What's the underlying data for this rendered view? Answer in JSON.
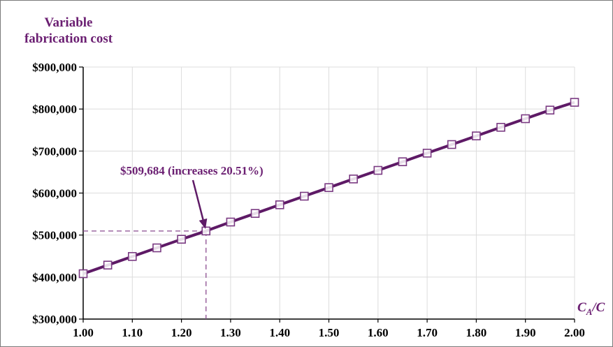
{
  "chart_data": {
    "type": "line",
    "title_lines": [
      "Variable",
      "fabrication cost"
    ],
    "xlabel_main": "C",
    "xlabel_sub": "A",
    "xlabel_tail": "/C",
    "x": [
      1.0,
      1.05,
      1.1,
      1.15,
      1.2,
      1.25,
      1.3,
      1.35,
      1.4,
      1.45,
      1.5,
      1.55,
      1.6,
      1.65,
      1.7,
      1.75,
      1.8,
      1.85,
      1.9,
      1.95,
      2.0
    ],
    "series": [
      {
        "values": [
          408000,
          428500,
          449000,
          469500,
          490000,
          509684,
          531000,
          551500,
          572000,
          592500,
          613000,
          633500,
          654000,
          674500,
          695000,
          715500,
          736000,
          756500,
          777000,
          797500,
          816000
        ]
      }
    ],
    "xlim": [
      1.0,
      2.0
    ],
    "ylim": [
      300000,
      900000
    ],
    "x_ticks": [
      1.0,
      1.1,
      1.2,
      1.3,
      1.4,
      1.5,
      1.6,
      1.7,
      1.8,
      1.9,
      2.0
    ],
    "x_tick_labels": [
      "1.00",
      "1.10",
      "1.20",
      "1.30",
      "1.40",
      "1.50",
      "1.60",
      "1.70",
      "1.80",
      "1.90",
      "2.00"
    ],
    "y_ticks": [
      300000,
      400000,
      500000,
      600000,
      700000,
      800000,
      900000
    ],
    "y_tick_labels": [
      "$300,000",
      "$400,000",
      "$500,000",
      "$600,000",
      "$700,000",
      "$800,000",
      "$900,000"
    ],
    "grid": true,
    "annotation": {
      "text": "$509,684 (increases 20.51%)",
      "x": 1.25,
      "y": 509684
    },
    "colors": {
      "line": "#5e1a66",
      "marker": "#7a3a82",
      "text": "#6b1f72",
      "grid": "#dcdcdc",
      "guide": "#8a4b8f"
    }
  }
}
